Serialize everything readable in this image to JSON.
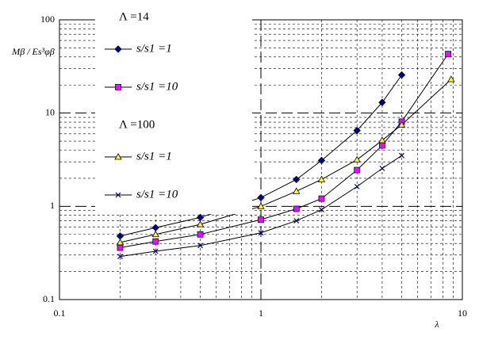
{
  "chart_data": {
    "type": "line",
    "x_label": "λ",
    "y_label": "Mβ / Es³φβ",
    "xscale": "log",
    "yscale": "log",
    "grid": true,
    "minor_grid": true,
    "xlim": [
      0.1,
      10
    ],
    "xticks": [
      0.1,
      1,
      10
    ],
    "ylim": [
      0.1,
      100
    ],
    "yticks": [
      0.1,
      1,
      10,
      100
    ],
    "groups": [
      {
        "title": "Λ =14",
        "series": [
          {
            "name": "s/s1 =1",
            "marker": "diamond",
            "color": "#000080",
            "x": [
              0.2,
              0.3,
              0.5,
              1,
              1.5,
              2,
              3,
              4,
              5
            ],
            "values": [
              0.48,
              0.59,
              0.76,
              1.24,
              1.94,
              3.1,
              6.5,
              13,
              25.6
            ]
          },
          {
            "name": "s/s1 =10",
            "marker": "square",
            "color": "#ff00ff",
            "x": [
              0.2,
              0.3,
              0.5,
              1,
              1.5,
              2,
              3,
              4,
              5,
              8.5
            ],
            "values": [
              0.36,
              0.42,
              0.5,
              0.72,
              0.94,
              1.21,
              2.45,
              4.5,
              8.1,
              43
            ]
          }
        ]
      },
      {
        "title": "Λ =100",
        "series": [
          {
            "name": "s/s1 =1",
            "marker": "triangle",
            "color": "#ffff00",
            "x": [
              0.2,
              0.3,
              0.5,
              1,
              1.5,
              2,
              3,
              4,
              5,
              8.8
            ],
            "values": [
              0.41,
              0.5,
              0.64,
              1.0,
              1.45,
              1.94,
              3.16,
              5.1,
              7.5,
              23
            ]
          },
          {
            "name": "s/s1 =10",
            "marker": "x",
            "color": "#000080",
            "x": [
              0.2,
              0.3,
              0.5,
              1,
              1.5,
              2,
              3,
              4,
              5
            ],
            "values": [
              0.29,
              0.33,
              0.38,
              0.52,
              0.7,
              0.92,
              1.63,
              2.55,
              3.5
            ]
          }
        ]
      }
    ]
  }
}
